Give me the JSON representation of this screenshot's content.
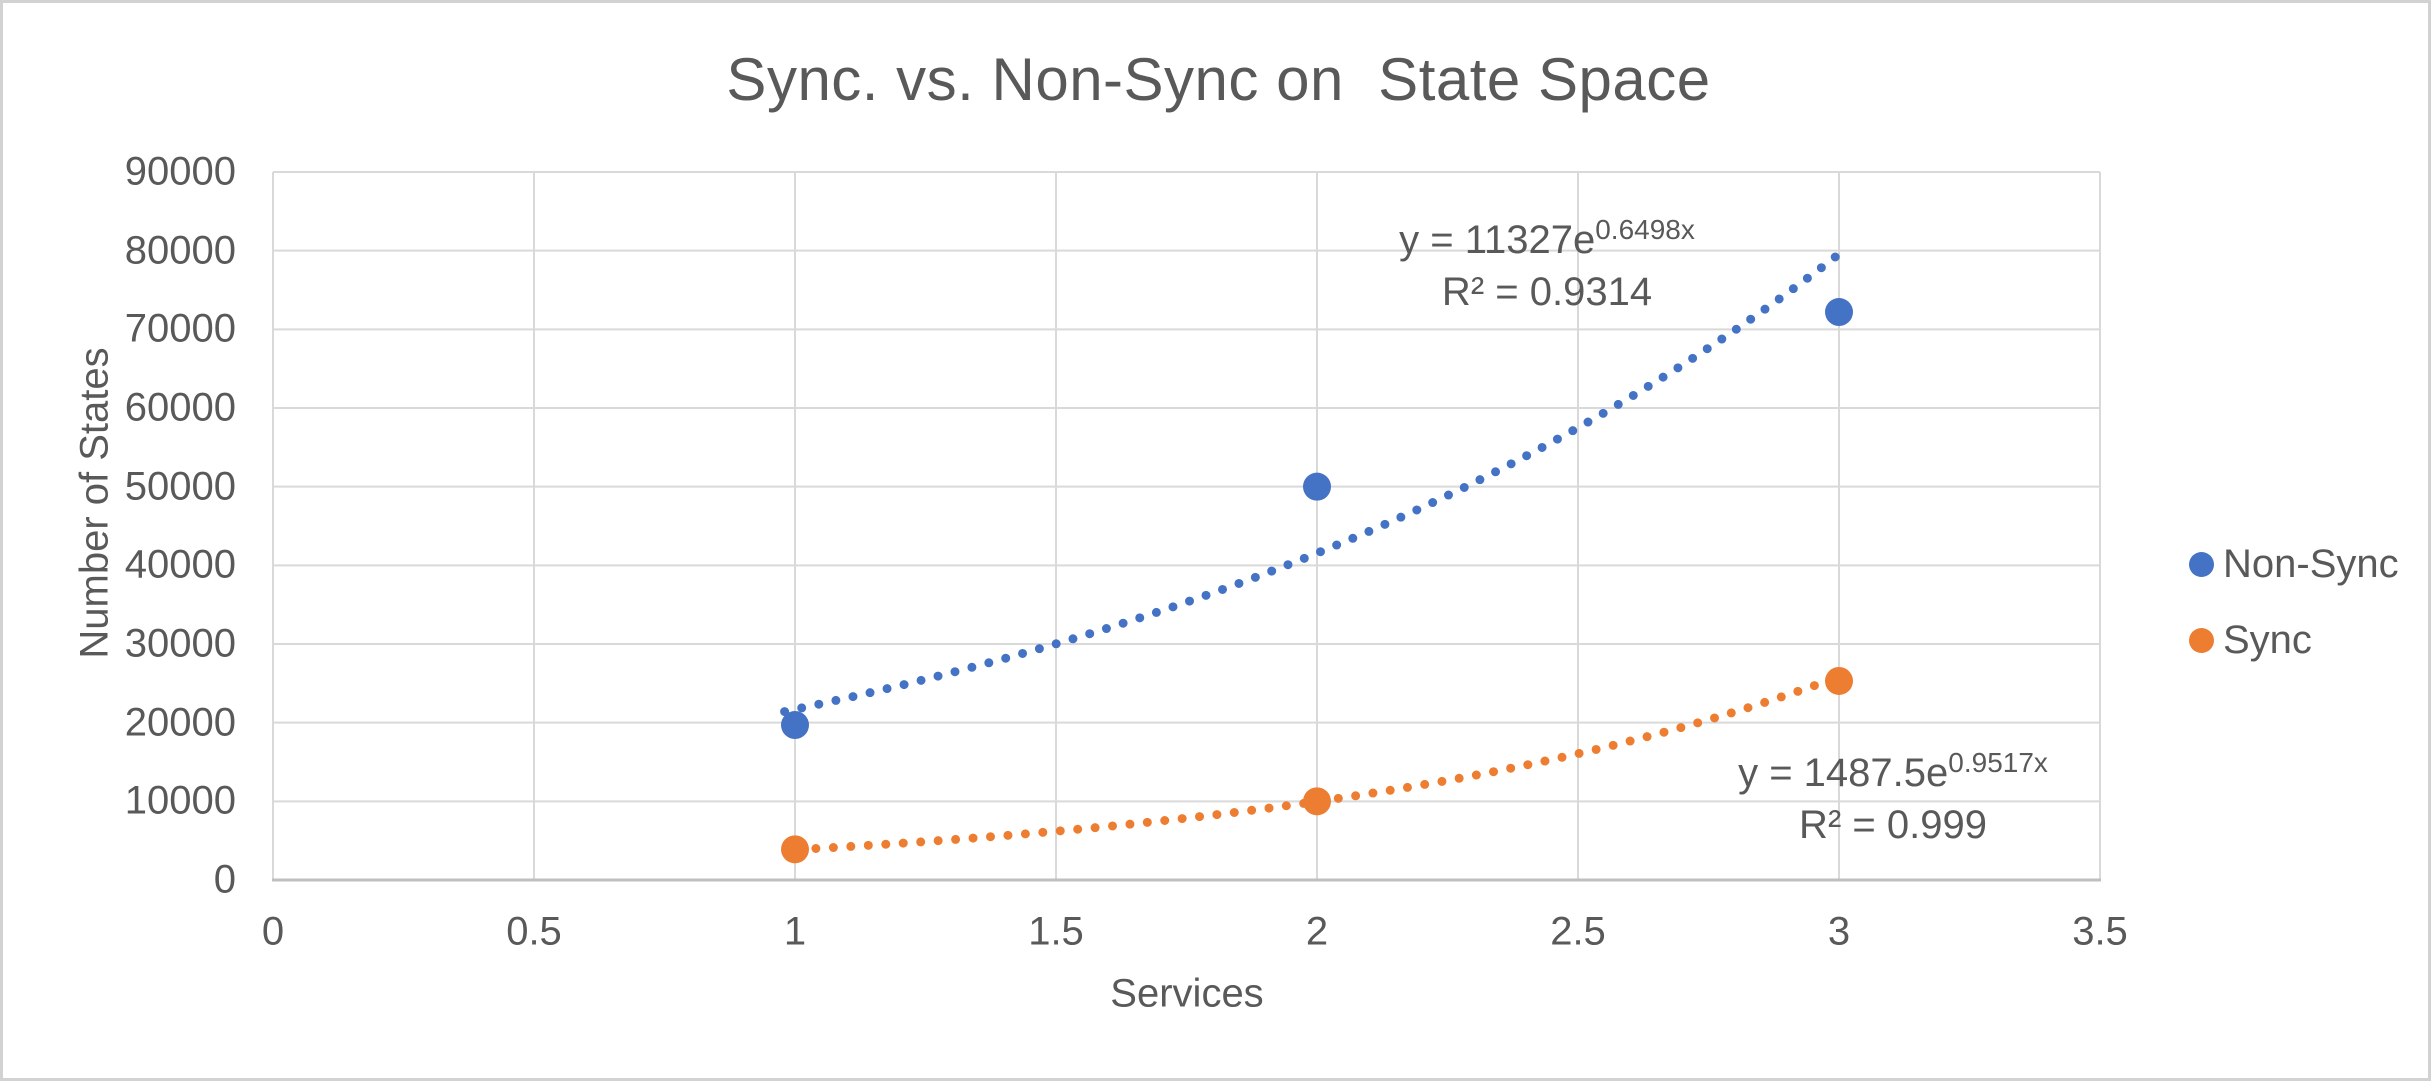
{
  "chart_data": {
    "type": "scatter",
    "title": "Sync. vs. Non-Sync on  State Space",
    "xlabel": "Services",
    "ylabel": "Number of States",
    "xlim": [
      0,
      3.5
    ],
    "ylim": [
      0,
      90000
    ],
    "x_ticks": [
      "0",
      "0.5",
      "1",
      "1.5",
      "2",
      "2.5",
      "3",
      "3.5"
    ],
    "y_ticks": [
      "0",
      "10000",
      "20000",
      "30000",
      "40000",
      "50000",
      "60000",
      "70000",
      "80000",
      "90000"
    ],
    "grid": true,
    "legend_position": "right",
    "series": [
      {
        "name": "Non-Sync",
        "color": "#4472C4",
        "x": [
          1,
          2,
          3
        ],
        "y": [
          19700,
          50000,
          72200
        ],
        "trendline": {
          "type": "exponential",
          "a": 11327,
          "b": 0.6498,
          "x_start": 0.98,
          "x_end": 3.01,
          "equation_base": "y = 11327e",
          "equation_exponent": "0.6498x",
          "r_squared_label": "R² = 0.9314"
        }
      },
      {
        "name": "Sync",
        "color": "#ED7D31",
        "x": [
          1,
          2,
          3
        ],
        "y": [
          3900,
          10000,
          25300
        ],
        "trendline": {
          "type": "exponential",
          "a": 1487.5,
          "b": 0.9517,
          "x_start": 1.04,
          "x_end": 2.99,
          "equation_base": "y = 1487.5e",
          "equation_exponent": "0.9517x",
          "r_squared_label": "R² = 0.999"
        }
      }
    ]
  },
  "legend": {
    "items": [
      {
        "label": "Non-Sync",
        "color": "#4472C4"
      },
      {
        "label": "Sync",
        "color": "#ED7D31"
      }
    ]
  },
  "style": {
    "text_color": "#595959",
    "gridline_color": "#D9D9D9",
    "axis_line_color": "#BFBFBF",
    "background": "#FFFFFF",
    "border_color": "#D2D2D2"
  }
}
